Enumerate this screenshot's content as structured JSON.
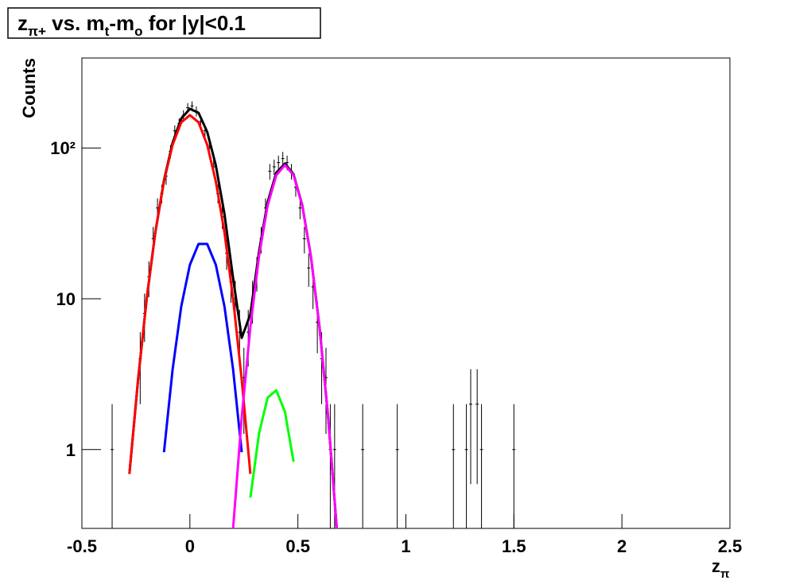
{
  "chart_data": {
    "type": "line",
    "title": [
      "z",
      "π+",
      " vs. m",
      "t",
      "-m",
      "o",
      " for |y|<0.1"
    ],
    "x_label": [
      "z",
      "π"
    ],
    "y_label": "Counts",
    "yscale": "log",
    "xlim": [
      -0.5,
      2.5
    ],
    "ylim": [
      0.3,
      395
    ],
    "xticks": [
      -0.5,
      0,
      0.5,
      1,
      1.5,
      2,
      2.5
    ],
    "yticks": [
      1,
      10,
      {
        "value": 100,
        "label": "10²"
      }
    ],
    "x": [
      -0.28,
      -0.24,
      -0.2,
      -0.16,
      -0.12,
      -0.08,
      -0.04,
      0,
      0.04,
      0.08,
      0.12,
      0.16,
      0.2,
      0.24,
      0.28,
      0.32,
      0.36,
      0.4,
      0.44,
      0.48,
      0.52,
      0.56,
      0.6,
      0.64,
      0.68
    ],
    "series": [
      {
        "color": "#000000",
        "values": [
          0.69,
          2.9,
          10.0,
          27.6,
          61,
          108.4,
          156.9,
          181.8,
          171.1,
          128.1,
          76.8,
          36.5,
          13.7,
          5.5,
          7.9,
          20.5,
          43.8,
          68.5,
          78.8,
          66.8,
          41.9,
          19.2,
          6.5,
          1.64,
          0.3
        ]
      },
      {
        "color": "#ff0000",
        "values": [
          0.69,
          2.9,
          10.0,
          27.6,
          60,
          105,
          148,
          165,
          148,
          105,
          60,
          27.6,
          10.0,
          2.9,
          0.69,
          null,
          null,
          null,
          null,
          null,
          null,
          null,
          null,
          null,
          null
        ]
      },
      {
        "color": "#0000ff",
        "values": [
          null,
          null,
          null,
          null,
          0.96,
          3.4,
          8.9,
          16.8,
          23.1,
          23.1,
          16.8,
          8.9,
          3.4,
          0.96,
          null,
          null,
          null,
          null,
          null,
          null,
          null,
          null,
          null,
          null,
          null
        ]
      },
      {
        "color": "#00ff00",
        "values": [
          null,
          null,
          null,
          null,
          null,
          null,
          null,
          null,
          null,
          null,
          null,
          null,
          null,
          null,
          0.48,
          1.28,
          2.21,
          2.47,
          1.78,
          0.83,
          null,
          null,
          null,
          null,
          null
        ]
      },
      {
        "color": "#ff00ff",
        "values": [
          null,
          null,
          null,
          null,
          null,
          null,
          null,
          null,
          null,
          null,
          null,
          null,
          0.3,
          1.64,
          6.5,
          19.2,
          41.6,
          66,
          77,
          66,
          41.6,
          19.2,
          6.5,
          1.64,
          0.3
        ]
      }
    ],
    "points": {
      "color": "#000000",
      "x": [
        -0.36,
        -0.23,
        -0.21,
        -0.19,
        -0.17,
        -0.15,
        -0.13,
        -0.11,
        -0.09,
        -0.07,
        -0.05,
        -0.03,
        -0.01,
        0.01,
        0.03,
        0.05,
        0.07,
        0.09,
        0.11,
        0.13,
        0.15,
        0.17,
        0.19,
        0.21,
        0.23,
        0.25,
        0.27,
        0.29,
        0.31,
        0.33,
        0.35,
        0.37,
        0.39,
        0.41,
        0.43,
        0.45,
        0.47,
        0.49,
        0.51,
        0.53,
        0.55,
        0.57,
        0.59,
        0.61,
        0.63,
        0.65,
        0.67,
        0.8,
        0.96,
        1.22,
        1.28,
        1.3,
        1.33,
        1.35,
        1.5
      ],
      "values": [
        1,
        4,
        8,
        14,
        25,
        40,
        50,
        65,
        95,
        130,
        145,
        165,
        185,
        190,
        175,
        150,
        130,
        100,
        75,
        50,
        35,
        20,
        13,
        10,
        6,
        3,
        6,
        10,
        15,
        25,
        40,
        70,
        75,
        80,
        85,
        80,
        70,
        55,
        40,
        25,
        16,
        12,
        7,
        4,
        3,
        1,
        1,
        1,
        1,
        1,
        1,
        2,
        2,
        1,
        1
      ],
      "errors": [
        1,
        2,
        2.83,
        3.74,
        5,
        6.32,
        7.07,
        8.06,
        9.75,
        11.4,
        12.04,
        12.85,
        13.6,
        13.78,
        13.23,
        12.25,
        11.4,
        10,
        8.66,
        7.07,
        5.92,
        4.47,
        3.61,
        3.16,
        2.45,
        1.73,
        2.45,
        3.16,
        3.87,
        5,
        6.32,
        8.37,
        8.66,
        8.94,
        9.22,
        8.94,
        8.37,
        7.42,
        6.32,
        5,
        4,
        3.46,
        2.65,
        2,
        1.73,
        1,
        1,
        1,
        1,
        1,
        1,
        1.41,
        1.41,
        1,
        1
      ]
    }
  }
}
